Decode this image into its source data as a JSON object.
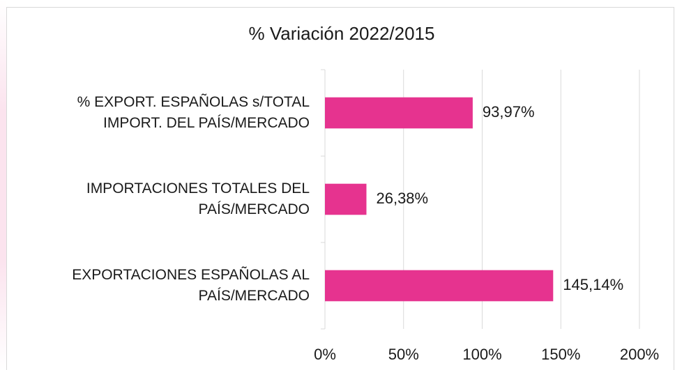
{
  "chart_data": {
    "type": "bar",
    "orientation": "horizontal",
    "title": "% Variación  2022/2015",
    "categories": [
      "% EXPORT. ESPAÑOLAS s/TOTAL\nIMPORT. DEL PAÍS/MERCADO",
      "IMPORTACIONES TOTALES DEL\nPAÍS/MERCADO",
      "EXPORTACIONES ESPAÑOLAS AL\nPAÍS/MERCADO"
    ],
    "values": [
      93.97,
      26.38,
      145.14
    ],
    "value_labels": [
      "93,97%",
      "26,38%",
      "145,14%"
    ],
    "color": "#e6338f",
    "xlim": [
      0,
      200
    ],
    "xticks": [
      {
        "value": 0,
        "label": "0%"
      },
      {
        "value": 50,
        "label": "50%"
      },
      {
        "value": 100,
        "label": "100%"
      },
      {
        "value": 150,
        "label": "150%"
      },
      {
        "value": 200,
        "label": "200%"
      }
    ],
    "grid": true
  }
}
